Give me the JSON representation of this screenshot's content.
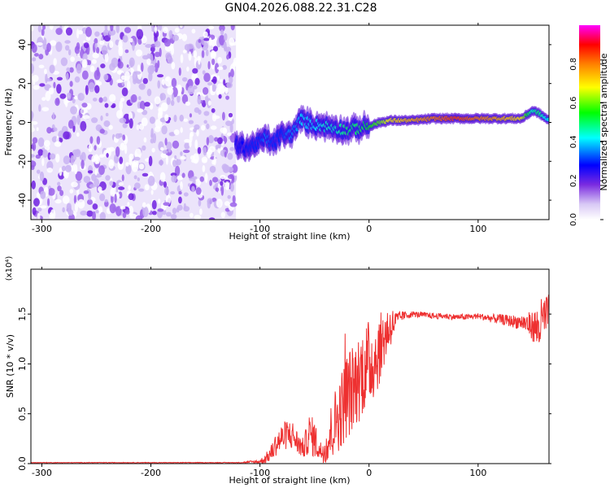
{
  "title": "GN04.2026.088.22.31.C28",
  "chart_data": [
    {
      "type": "heatmap",
      "title": "GN04.2026.088.22.31.C28",
      "xlabel": "Height of straight line (km)",
      "ylabel": "Frequency (Hz)",
      "xlim": [
        -310,
        165
      ],
      "ylim": [
        -50,
        50
      ],
      "xticks": [
        -300,
        -200,
        -100,
        0,
        100
      ],
      "xtick_labels": [
        "-300",
        "-200",
        "-100",
        "0",
        "100"
      ],
      "yticks": [
        -40,
        -20,
        0,
        20,
        40
      ],
      "ytick_labels": [
        "-40",
        "-20",
        "0",
        "20",
        "40"
      ],
      "colorbar": {
        "label": "Normalized spectral amplitude",
        "range": [
          0,
          1
        ],
        "ticks": [
          0.0,
          0.2,
          0.4,
          0.6,
          0.8
        ],
        "tick_labels": [
          "0.0",
          "0.2",
          "0.4",
          "0.6",
          "0.8"
        ],
        "colormap": [
          "#ffffff",
          "#d8c8f5",
          "#7a2be0",
          "#0000ff",
          "#00ffff",
          "#00ff00",
          "#ffff00",
          "#ff8000",
          "#ff0000",
          "#ff00ff"
        ]
      },
      "noise_region_km": [
        -310,
        -122
      ],
      "ridge": {
        "x_km": [
          -122,
          -110,
          -100,
          -95,
          -88,
          -80,
          -75,
          -68,
          -62,
          -58,
          -50,
          -40,
          -30,
          -20,
          -10,
          0,
          10,
          20,
          40,
          60,
          80,
          100,
          120,
          140,
          145,
          150,
          155,
          160,
          165
        ],
        "freq_hz": [
          -12,
          -13,
          -10,
          -8,
          -11,
          -6,
          -7,
          -4,
          2,
          0,
          -1,
          -2,
          -3,
          -4,
          -3,
          -2,
          0,
          1,
          1,
          2,
          2,
          2,
          2,
          2,
          4,
          6,
          5,
          3,
          1
        ],
        "amplitude": [
          0.25,
          0.3,
          0.3,
          0.35,
          0.3,
          0.3,
          0.35,
          0.35,
          0.4,
          0.4,
          0.4,
          0.45,
          0.45,
          0.5,
          0.5,
          0.55,
          0.6,
          0.7,
          0.75,
          0.8,
          0.85,
          0.8,
          0.75,
          0.7,
          0.55,
          0.45,
          0.5,
          0.45,
          0.4
        ]
      }
    },
    {
      "type": "line",
      "title": "",
      "xlabel": "Height of straight line (km)",
      "ylabel": "SNR (10 * v/v)",
      "scale_label": "(x10⁴)",
      "xlim": [
        -310,
        165
      ],
      "ylim": [
        0,
        1.95
      ],
      "xticks": [
        -300,
        -200,
        -100,
        0,
        100
      ],
      "xtick_labels": [
        "-300",
        "-200",
        "-100",
        "0",
        "100"
      ],
      "yticks": [
        0.0,
        0.5,
        1.0,
        1.5
      ],
      "ytick_labels": [
        "0.0",
        "0.5",
        "1.0",
        "1.5"
      ],
      "series": [
        {
          "name": "SNR",
          "color": "#ee3030",
          "x": [
            -310,
            -200,
            -120,
            -100,
            -95,
            -90,
            -85,
            -80,
            -75,
            -70,
            -65,
            -60,
            -55,
            -50,
            -45,
            -40,
            -35,
            -30,
            -25,
            -20,
            -15,
            -10,
            -5,
            0,
            5,
            10,
            15,
            20,
            25,
            30,
            40,
            50,
            60,
            70,
            80,
            90,
            100,
            110,
            120,
            130,
            140,
            150,
            155,
            160,
            165
          ],
          "y": [
            0.01,
            0.01,
            0.01,
            0.02,
            0.05,
            0.1,
            0.2,
            0.25,
            0.3,
            0.28,
            0.2,
            0.15,
            0.3,
            0.25,
            0.12,
            0.15,
            0.3,
            0.45,
            0.55,
            0.7,
            0.75,
            0.85,
            0.95,
            1.0,
            1.05,
            1.15,
            1.3,
            1.38,
            1.43,
            1.48,
            1.5,
            1.49,
            1.48,
            1.48,
            1.47,
            1.47,
            1.48,
            1.46,
            1.45,
            1.43,
            1.42,
            1.38,
            1.35,
            1.45,
            1.5
          ],
          "spread": [
            0.003,
            0.003,
            0.003,
            0.02,
            0.05,
            0.08,
            0.12,
            0.15,
            0.15,
            0.15,
            0.12,
            0.1,
            0.2,
            0.2,
            0.1,
            0.15,
            0.3,
            0.35,
            0.4,
            0.45,
            0.45,
            0.45,
            0.45,
            0.45,
            0.4,
            0.35,
            0.3,
            0.2,
            0.1,
            0.05,
            0.03,
            0.03,
            0.03,
            0.03,
            0.03,
            0.03,
            0.03,
            0.04,
            0.05,
            0.06,
            0.08,
            0.15,
            0.25,
            0.25,
            0.2
          ]
        }
      ]
    }
  ]
}
